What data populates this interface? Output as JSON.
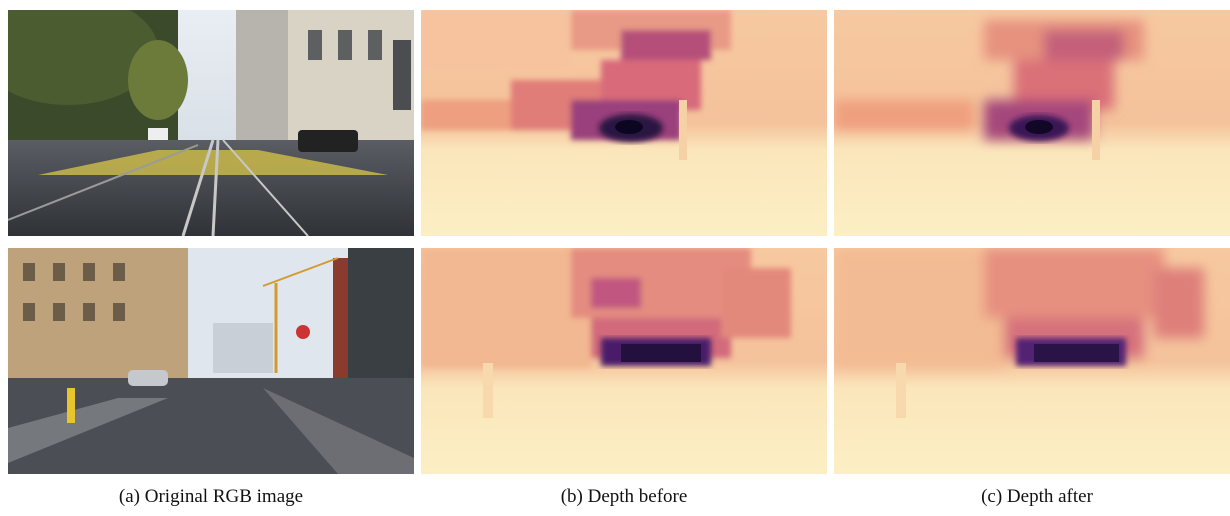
{
  "captions": {
    "a": "(a) Original RGB image",
    "b": "(b) Depth before",
    "c": "(c) Depth after"
  },
  "columns": [
    "Original RGB image",
    "Depth before",
    "Depth after"
  ],
  "rows": [
    "street-scene-tram-tracks",
    "street-scene-crane"
  ],
  "colormap": {
    "near": "#fcf0c0",
    "mid": "#e8877a",
    "far": "#1c0f3f"
  }
}
